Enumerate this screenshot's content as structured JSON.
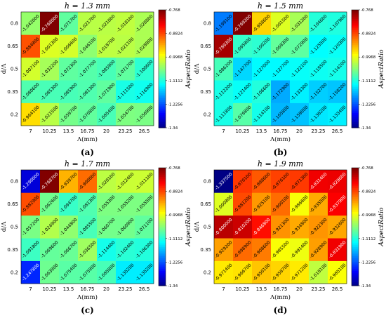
{
  "figure": {
    "colormap": "jet",
    "colorbar": {
      "label": "AspectRatio",
      "ticks": [
        "-0.768",
        "-0.8824",
        "-0.9968",
        "-1.1112",
        "-1.2256",
        "-1.34"
      ],
      "min": -1.34,
      "max": -0.768
    }
  },
  "chart_data": [
    {
      "type": "heatmap",
      "title": "h = 1.3 mm",
      "panel_label": "(a)",
      "xlabel": "Λ(mm)",
      "ylabel": "d/Λ",
      "x": [
        "7",
        "10.25",
        "13.5",
        "16.75",
        "20",
        "23.25",
        "26.5"
      ],
      "y": [
        "0.2",
        "0.35",
        "0.5",
        "0.65",
        "0.8"
      ],
      "values": [
        [
          -0.9641,
          -1.0215,
          -1.0597,
          -1.0708,
          -1.0854,
          -1.0547,
          -1.0569
        ],
        [
          -1.0806,
          -1.0853,
          -1.0859,
          -1.0813,
          -1.0719,
          -1.1115,
          -1.1169
        ],
        [
          -1.0071,
          -1.0322,
          -1.0723,
          -1.0777,
          -1.0859,
          -1.0717,
          -1.1006
        ],
        [
          -0.8848,
          -1.0013,
          -1.0066,
          -1.0461,
          -1.0187,
          -1.0211,
          -1.0288
        ],
        [
          -1.042,
          -0.768,
          -1.0717,
          -1.0217,
          -1.021,
          -1.0181,
          -1.0288
        ]
      ]
    },
    {
      "type": "heatmap",
      "title": "h = 1.5 mm",
      "panel_label": "(b)",
      "xlabel": "Λ(mm)",
      "ylabel": "d/Λ",
      "x": [
        "7",
        "10.25",
        "13.5",
        "16.75",
        "20",
        "23.25",
        "26.5"
      ],
      "y": [
        "0.2",
        "0.35",
        "0.5",
        "0.65",
        "0.8"
      ],
      "values": [
        [
          -1.1118,
          -1.0768,
          -1.1141,
          -1.1658,
          -1.159,
          -1.1382,
          -1.1334
        ],
        [
          -1.1122,
          -1.1214,
          -1.1066,
          -1.1729,
          -1.1333,
          -1.1527,
          -1.1582
        ],
        [
          -1.0862,
          -1.1477,
          -1.127,
          -1.1277,
          -1.1221,
          -1.1185,
          -1.1142
        ],
        [
          -0.7893,
          -1.0958,
          -1.1002,
          -1.0693,
          -1.0729,
          -1.1255,
          -1.1203
        ],
        [
          -1.1991,
          -0.7692,
          -0.9586,
          -1.0015,
          -1.0312,
          -1.1046,
          -1.1079
        ]
      ]
    },
    {
      "type": "heatmap",
      "title": "h = 1.7 mm",
      "panel_label": "(c)",
      "xlabel": "Λ(mm)",
      "ylabel": "d/Λ",
      "x": [
        "7",
        "10.25",
        "13.5",
        "16.75",
        "20",
        "23.25",
        "26.5"
      ],
      "y": [
        "0.2",
        "0.35",
        "0.5",
        "0.65",
        "0.8"
      ],
      "values": [
        [
          -1.2478,
          -1.0639,
          -1.0754,
          -1.0759,
          -1.0858,
          -1.1352,
          -1.1352
        ],
        [
          -1.0918,
          -1.0696,
          -1.0667,
          -1.0365,
          -1.1144,
          -1.1024,
          -1.1063
        ],
        [
          -1.0572,
          -1.0249,
          -1.0448,
          -1.0855,
          -1.0607,
          -1.0609,
          -1.0711
        ],
        [
          -0.8829,
          -1.0626,
          -1.0947,
          -1.0813,
          -1.0553,
          -1.0552,
          -1.0555
        ],
        [
          -1.29,
          -0.7687,
          -0.9397,
          -0.9,
          -1.0201,
          -1.0124,
          -1.0111
        ]
      ]
    },
    {
      "type": "heatmap",
      "title": "h = 1.9 mm",
      "panel_label": "(d)",
      "xlabel": "Λ(mm)",
      "ylabel": "d/Λ",
      "x": [
        "7",
        "10.25",
        "13.5",
        "16.75",
        "20",
        "23.25",
        "26.5"
      ],
      "y": [
        "0.2",
        "0.35",
        "0.5",
        "0.65",
        "0.8"
      ],
      "values": [
        [
          -0.9714,
          -0.9667,
          -0.9501,
          -0.9587,
          -0.9712,
          -1.0181,
          -0.9851
        ],
        [
          -0.9292,
          -0.8989,
          -0.9086,
          -0.9855,
          -0.9914,
          -0.9289,
          -0.8319
        ],
        [
          -0.8,
          -0.8102,
          -0.8468,
          -0.9213,
          -0.9348,
          -0.9223,
          -0.9326
        ],
        [
          -1.0008,
          -0.8812,
          -0.9251,
          -0.9001,
          -0.9866,
          -0.9355,
          -0.8379
        ],
        [
          -1.3375,
          -0.8701,
          -0.8886,
          -0.8761,
          -0.8713,
          -0.8314,
          -0.8296
        ]
      ]
    }
  ]
}
